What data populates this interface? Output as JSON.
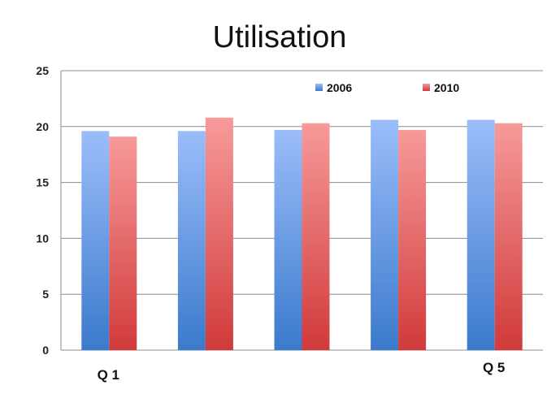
{
  "chart_data": {
    "type": "bar",
    "title": "Utilisation",
    "xlabel": "",
    "ylabel": "",
    "categories": [
      "Q 1",
      "",
      "",
      "",
      "Q 5"
    ],
    "series": [
      {
        "name": "2006",
        "values": [
          19.6,
          19.6,
          19.7,
          20.6,
          20.6
        ],
        "color_top": "#9bbdfa",
        "color_bottom": "#3b7acc"
      },
      {
        "name": "2010",
        "values": [
          19.1,
          20.8,
          20.3,
          19.7,
          20.3
        ],
        "color_top": "#f79a9a",
        "color_bottom": "#d13a3a"
      }
    ],
    "ylim": [
      0,
      25
    ],
    "yticks": [
      0,
      5,
      10,
      15,
      20,
      25
    ],
    "grid": true,
    "legend": "top-right"
  }
}
